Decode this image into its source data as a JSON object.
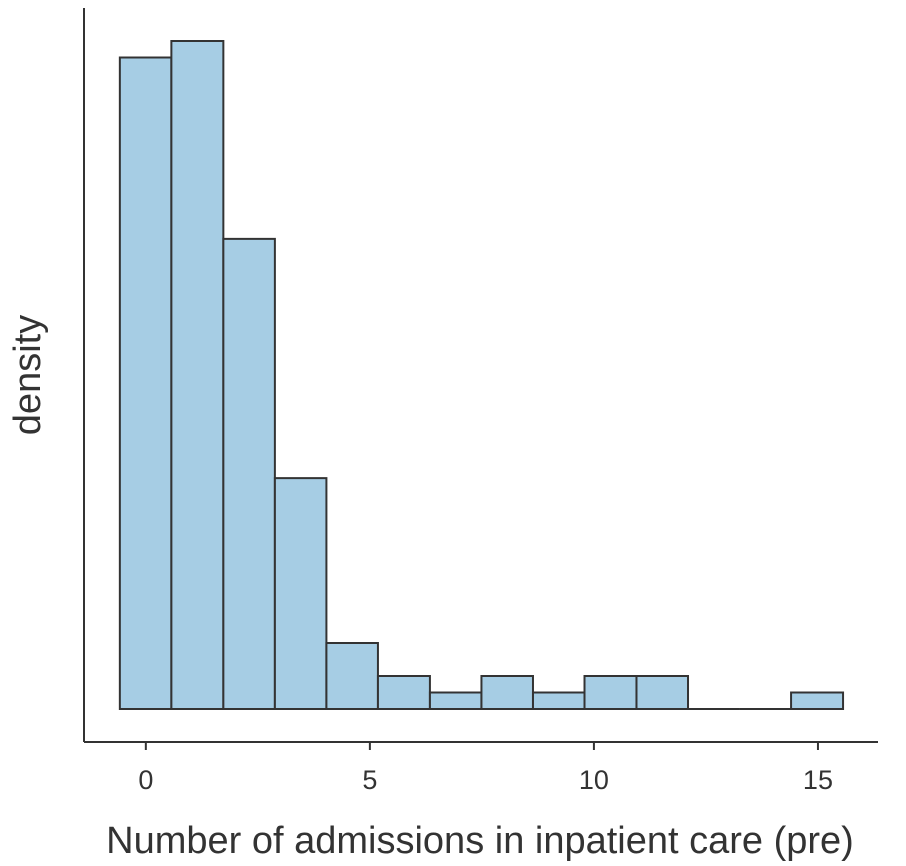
{
  "chart_data": {
    "type": "histogram",
    "x_label": "Number of admissions in inpatient care (pre)",
    "y_label": "density",
    "bins": [
      -0.58,
      0.57,
      1.73,
      2.88,
      4.03,
      5.18,
      6.34,
      7.49,
      8.64,
      9.79,
      10.95,
      12.1,
      13.25,
      14.4,
      15.56
    ],
    "values": [
      39.5,
      40.5,
      28.5,
      14,
      4,
      2,
      1,
      2,
      1,
      2,
      2,
      0,
      0,
      1
    ],
    "color": "#a6cde4",
    "xlim": [
      -1.38,
      16.34
    ],
    "xticks": [
      0,
      5,
      10,
      15
    ],
    "ylim": [
      -2,
      42.5
    ]
  }
}
